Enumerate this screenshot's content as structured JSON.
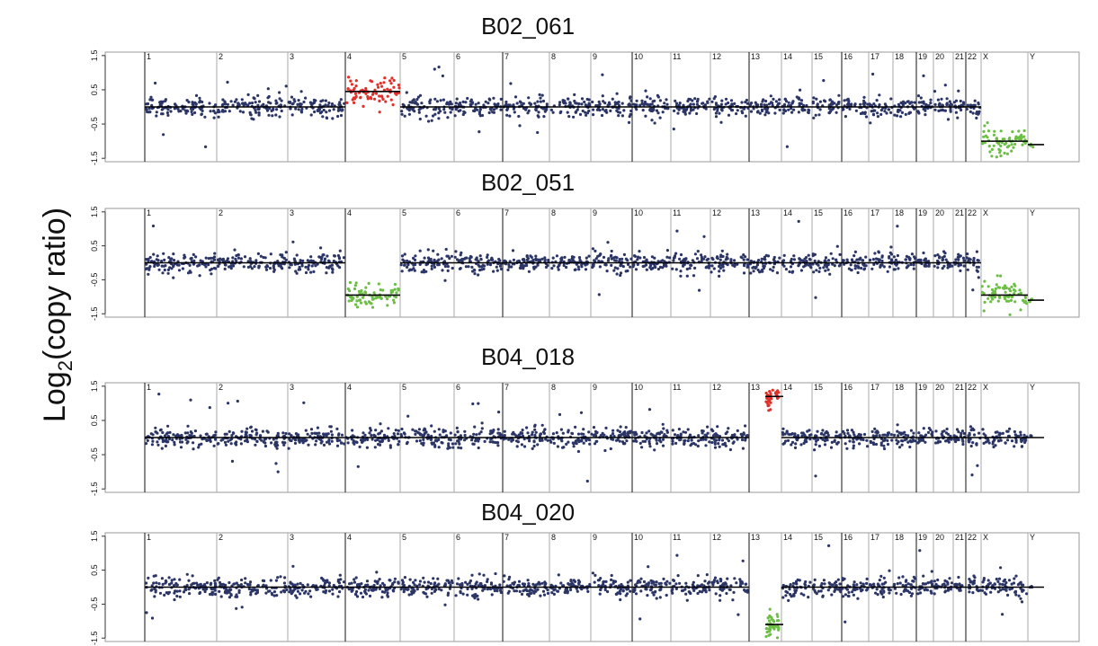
{
  "figure": {
    "ylabel_main": "Log",
    "ylabel_sub": "2",
    "ylabel_rest": "(copy ratio)"
  },
  "chart_data": [
    {
      "type": "scatter",
      "title": "B02_061",
      "yticks": [
        "1.5",
        "0.5",
        "-0.5",
        "-1.5"
      ],
      "ylim": [
        -1.6,
        1.6
      ],
      "chromosomes": [
        "1",
        "2",
        "3",
        "4",
        "5",
        "6",
        "7",
        "8",
        "9",
        "10",
        "11",
        "12",
        "13",
        "14",
        "15",
        "16",
        "17",
        "18",
        "19",
        "20",
        "21",
        "22",
        "X",
        "Y"
      ],
      "segments": [
        {
          "chr": "4",
          "mean": 0.45,
          "status": "gain"
        },
        {
          "chr": "X",
          "mean": -1.0,
          "status": "loss"
        },
        {
          "chr": "Y",
          "mean": -1.1,
          "status": "loss"
        }
      ],
      "colors": {
        "normal": "#2b3566",
        "gain": "#e0302a",
        "loss": "#6cbe45"
      }
    },
    {
      "type": "scatter",
      "title": "B02_051",
      "yticks": [
        "1.5",
        "0.5",
        "-0.5",
        "-1.5"
      ],
      "ylim": [
        -1.6,
        1.6
      ],
      "chromosomes": [
        "1",
        "2",
        "3",
        "4",
        "5",
        "6",
        "7",
        "8",
        "9",
        "10",
        "11",
        "12",
        "13",
        "14",
        "15",
        "16",
        "17",
        "18",
        "19",
        "20",
        "21",
        "22",
        "X",
        "Y"
      ],
      "segments": [
        {
          "chr": "4",
          "mean": -0.95,
          "status": "loss"
        },
        {
          "chr": "X",
          "mean": -0.95,
          "status": "loss"
        },
        {
          "chr": "Y",
          "mean": -1.1,
          "status": "loss"
        }
      ],
      "colors": {
        "normal": "#2b3566",
        "gain": "#e0302a",
        "loss": "#6cbe45"
      }
    },
    {
      "type": "scatter",
      "title": "B04_018",
      "yticks": [
        "1.5",
        "0.5",
        "-0.5",
        "-1.5"
      ],
      "ylim": [
        -1.6,
        1.6
      ],
      "chromosomes": [
        "1",
        "2",
        "3",
        "4",
        "5",
        "6",
        "7",
        "8",
        "9",
        "10",
        "11",
        "12",
        "13",
        "14",
        "15",
        "16",
        "17",
        "18",
        "19",
        "20",
        "21",
        "22",
        "X",
        "Y"
      ],
      "segments": [
        {
          "chr": "13",
          "mean": 1.2,
          "status": "gain"
        }
      ],
      "colors": {
        "normal": "#2b3566",
        "gain": "#e0302a",
        "loss": "#6cbe45"
      }
    },
    {
      "type": "scatter",
      "title": "B04_020",
      "yticks": [
        "1.5",
        "0.5",
        "-0.5",
        "-1.5"
      ],
      "ylim": [
        -1.6,
        1.6
      ],
      "chromosomes": [
        "1",
        "2",
        "3",
        "4",
        "5",
        "6",
        "7",
        "8",
        "9",
        "10",
        "11",
        "12",
        "13",
        "14",
        "15",
        "16",
        "17",
        "18",
        "19",
        "20",
        "21",
        "22",
        "X",
        "Y"
      ],
      "segments": [
        {
          "chr": "13",
          "mean": -1.1,
          "status": "loss"
        }
      ],
      "colors": {
        "normal": "#2b3566",
        "gain": "#e0302a",
        "loss": "#6cbe45"
      }
    }
  ]
}
